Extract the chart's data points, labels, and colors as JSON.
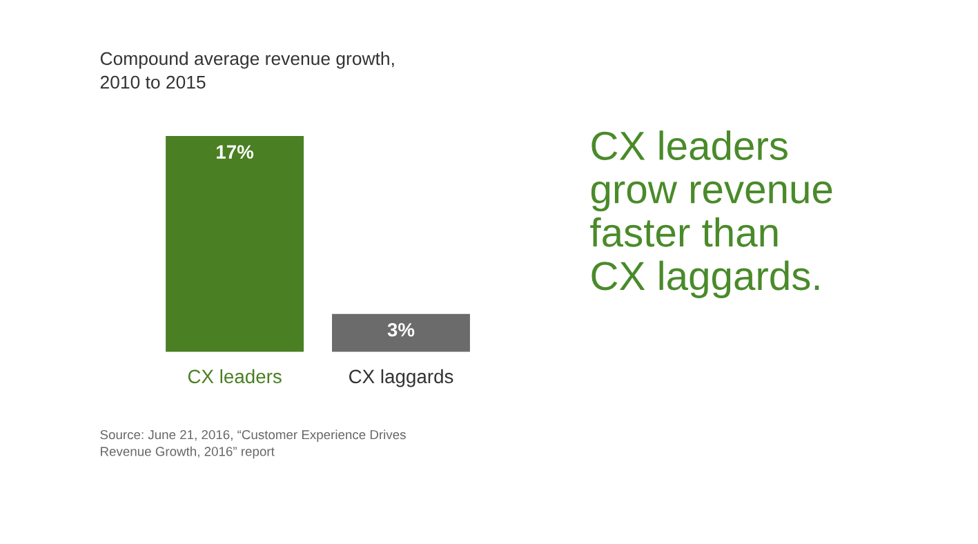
{
  "chart_data": {
    "type": "bar",
    "title": "Compound average revenue growth,\n2010 to 2015",
    "categories": [
      "CX leaders",
      "CX laggards"
    ],
    "values": [
      17,
      3
    ],
    "colors": [
      "#4a7f23",
      "#6b6b6b"
    ],
    "value_labels": [
      "17%",
      "3%"
    ],
    "grid": false,
    "legend": false,
    "annotations": [
      "Source: June 21, 2016, “Customer Experience Drives\nRevenue Growth, 2016” report",
      "CX leaders\ngrow revenue\nfaster than\nCX laggards."
    ]
  }
}
